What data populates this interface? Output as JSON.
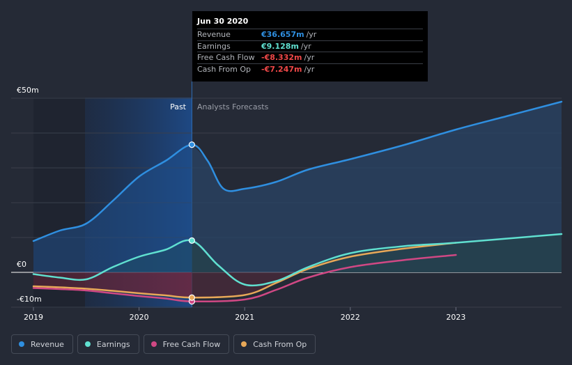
{
  "chart_data": {
    "type": "line",
    "x_ticks": [
      "2019",
      "2020",
      "2021",
      "2022",
      "2023"
    ],
    "y_ticks": [
      "€50m",
      "€0",
      "-€10m"
    ],
    "ylim": [
      -10,
      50
    ],
    "xlim": [
      2019.0,
      2024.0
    ],
    "divider_x": 2020.5,
    "region_labels": {
      "past": "Past",
      "forecast": "Analysts Forecasts"
    },
    "grid": true,
    "legend_position": "bottom-left",
    "series": [
      {
        "name": "Revenue",
        "color": "#2f8fe0",
        "past": [
          [
            2019.0,
            9.0
          ],
          [
            2019.25,
            12.0
          ],
          [
            2019.5,
            14.0
          ],
          [
            2019.75,
            20.5
          ],
          [
            2020.0,
            27.5
          ],
          [
            2020.25,
            32.0
          ],
          [
            2020.5,
            36.657
          ]
        ],
        "forecast": [
          [
            2020.5,
            36.657
          ],
          [
            2020.65,
            32.0
          ],
          [
            2020.8,
            24.0
          ],
          [
            2021.0,
            24.0
          ],
          [
            2021.3,
            26.0
          ],
          [
            2021.6,
            29.5
          ],
          [
            2022.0,
            32.5
          ],
          [
            2022.5,
            36.5
          ],
          [
            2023.0,
            41.0
          ],
          [
            2023.5,
            45.0
          ],
          [
            2024.0,
            49.0
          ]
        ]
      },
      {
        "name": "Earnings",
        "color": "#60e0d0",
        "past": [
          [
            2019.0,
            -0.5
          ],
          [
            2019.25,
            -1.5
          ],
          [
            2019.5,
            -2.0
          ],
          [
            2019.75,
            1.5
          ],
          [
            2020.0,
            4.5
          ],
          [
            2020.25,
            6.5
          ],
          [
            2020.5,
            9.128
          ]
        ],
        "forecast": [
          [
            2020.5,
            9.128
          ],
          [
            2020.75,
            2.0
          ],
          [
            2021.0,
            -3.5
          ],
          [
            2021.3,
            -2.5
          ],
          [
            2021.6,
            1.5
          ],
          [
            2022.0,
            5.5
          ],
          [
            2022.5,
            7.5
          ],
          [
            2023.0,
            8.5
          ],
          [
            2024.0,
            11.0
          ]
        ]
      },
      {
        "name": "Free Cash Flow",
        "color": "#d04884",
        "past": [
          [
            2019.0,
            -4.5
          ],
          [
            2019.25,
            -4.8
          ],
          [
            2019.5,
            -5.2
          ],
          [
            2019.75,
            -6.0
          ],
          [
            2020.0,
            -6.8
          ],
          [
            2020.25,
            -7.5
          ],
          [
            2020.5,
            -8.332
          ]
        ],
        "forecast": [
          [
            2020.5,
            -8.332
          ],
          [
            2021.0,
            -7.8
          ],
          [
            2021.3,
            -5.0
          ],
          [
            2021.6,
            -1.5
          ],
          [
            2022.0,
            1.5
          ],
          [
            2022.5,
            3.5
          ],
          [
            2023.0,
            5.0
          ]
        ]
      },
      {
        "name": "Cash From Op",
        "color": "#e8a858",
        "past": [
          [
            2019.0,
            -4.0
          ],
          [
            2019.25,
            -4.3
          ],
          [
            2019.5,
            -4.7
          ],
          [
            2019.75,
            -5.3
          ],
          [
            2020.0,
            -6.0
          ],
          [
            2020.25,
            -6.6
          ],
          [
            2020.5,
            -7.247
          ]
        ],
        "forecast": [
          [
            2020.5,
            -7.247
          ],
          [
            2021.0,
            -6.5
          ],
          [
            2021.3,
            -3.0
          ],
          [
            2021.6,
            1.0
          ],
          [
            2022.0,
            4.5
          ],
          [
            2022.5,
            6.8
          ],
          [
            2023.0,
            8.5
          ]
        ]
      }
    ]
  },
  "tooltip": {
    "date": "Jun 30 2020",
    "rows": [
      {
        "label": "Revenue",
        "value": "€36.657m",
        "unit": "/yr",
        "color": "#2f8fe0"
      },
      {
        "label": "Earnings",
        "value": "€9.128m",
        "unit": "/yr",
        "color": "#60e0d0"
      },
      {
        "label": "Free Cash Flow",
        "value": "-€8.332m",
        "unit": "/yr",
        "color": "#f04848"
      },
      {
        "label": "Cash From Op",
        "value": "-€7.247m",
        "unit": "/yr",
        "color": "#f04848"
      }
    ]
  },
  "legend": [
    {
      "label": "Revenue",
      "color": "#2f8fe0"
    },
    {
      "label": "Earnings",
      "color": "#60e0d0"
    },
    {
      "label": "Free Cash Flow",
      "color": "#d04884"
    },
    {
      "label": "Cash From Op",
      "color": "#e8a858"
    }
  ]
}
